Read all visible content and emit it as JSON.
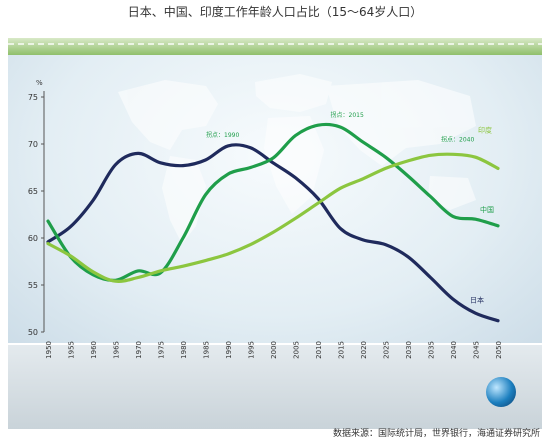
{
  "title": "日本、中国、印度工作年龄人口占比（15～64岁人口）",
  "source": "数据来源：国际统计局，世界银行，海通证券研究所",
  "chart_data": {
    "type": "line",
    "ylabel": "%",
    "ylim": [
      50,
      75
    ],
    "yticks": [
      50,
      55,
      60,
      65,
      70,
      75
    ],
    "x": [
      1950,
      1955,
      1960,
      1965,
      1970,
      1975,
      1980,
      1985,
      1990,
      1995,
      2000,
      2005,
      2010,
      2015,
      2020,
      2025,
      2030,
      2035,
      2040,
      2045,
      2050
    ],
    "xtick_labels": [
      "1950",
      "1955",
      "1960",
      "1965",
      "1970",
      "1975",
      "1980",
      "1985",
      "1990",
      "1995",
      "2000",
      "2005",
      "2010",
      "2015",
      "2020",
      "2025",
      "2030",
      "2035",
      "2040",
      "2045",
      "2050"
    ],
    "series": [
      {
        "name": "日本",
        "color": "#1f2a5c",
        "values": [
          59.6,
          61.2,
          64.0,
          67.8,
          69.0,
          68.0,
          67.7,
          68.3,
          69.8,
          69.6,
          68.0,
          66.4,
          64.2,
          61.0,
          59.8,
          59.3,
          58.0,
          55.8,
          53.5,
          52.0,
          51.2
        ]
      },
      {
        "name": "中国",
        "color": "#1f9e4a",
        "values": [
          61.8,
          58.0,
          56.1,
          55.5,
          56.5,
          56.3,
          60.0,
          64.6,
          66.8,
          67.5,
          68.5,
          70.9,
          72.0,
          71.8,
          70.2,
          68.6,
          66.6,
          64.4,
          62.3,
          62.0,
          61.3
        ]
      },
      {
        "name": "印度",
        "color": "#8cc63f",
        "values": [
          59.4,
          58.1,
          56.4,
          55.4,
          55.8,
          56.5,
          57.0,
          57.6,
          58.3,
          59.3,
          60.6,
          62.1,
          63.7,
          65.3,
          66.3,
          67.4,
          68.2,
          68.8,
          68.9,
          68.6,
          67.4
        ]
      }
    ],
    "annotations": [
      {
        "text": "拐点：1990",
        "x": 1990,
        "y": 69.9
      },
      {
        "text": "拐点：2015",
        "x": 2015,
        "y": 72.0
      },
      {
        "text": "拐点：2040",
        "x": 2040,
        "y": 69.0
      }
    ],
    "grid": false,
    "legend": "inline labels at right end of lines"
  }
}
